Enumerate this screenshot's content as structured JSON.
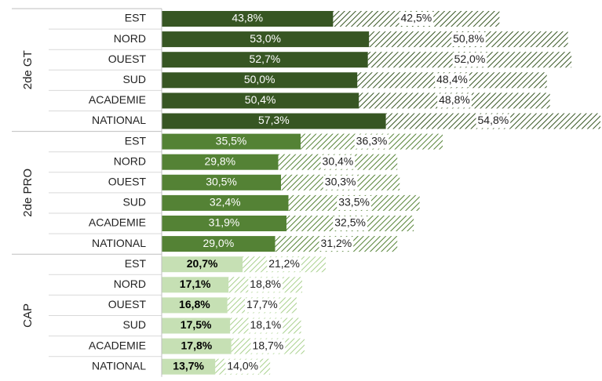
{
  "chart_data": {
    "type": "bar",
    "orientation": "horizontal",
    "stacked": true,
    "groups": [
      {
        "label": "2de GT",
        "categories": [
          "EST",
          "NORD",
          "OUEST",
          "SUD",
          "ACADEMIE",
          "NATIONAL"
        ],
        "series": [
          {
            "color": "#375623",
            "values": [
              43.8,
              53.0,
              52.7,
              50.0,
              50.4,
              57.3
            ],
            "value_labels": [
              "43,8%",
              "53,0%",
              "52,7%",
              "50,0%",
              "50,4%",
              "57,3%"
            ]
          },
          {
            "color": "#375623",
            "pattern": "hatch",
            "values": [
              42.5,
              50.8,
              52.0,
              48.4,
              48.8,
              54.8
            ],
            "value_labels": [
              "42,5%",
              "50,8%",
              "52,0%",
              "48,4%",
              "48,8%",
              "54,8%"
            ]
          }
        ]
      },
      {
        "label": "2de PRO",
        "categories": [
          "EST",
          "NORD",
          "OUEST",
          "SUD",
          "ACADEMIE",
          "NATIONAL"
        ],
        "series": [
          {
            "color": "#548235",
            "values": [
              35.5,
              29.8,
              30.5,
              32.4,
              31.9,
              29.0
            ],
            "value_labels": [
              "35,5%",
              "29,8%",
              "30,5%",
              "32,4%",
              "31,9%",
              "29,0%"
            ]
          },
          {
            "color": "#548235",
            "pattern": "hatch",
            "values": [
              36.3,
              30.4,
              30.3,
              33.5,
              32.5,
              31.2
            ],
            "value_labels": [
              "36,3%",
              "30,4%",
              "30,3%",
              "33,5%",
              "32,5%",
              "31,2%"
            ]
          }
        ]
      },
      {
        "label": "CAP",
        "categories": [
          "EST",
          "NORD",
          "OUEST",
          "SUD",
          "ACADEMIE",
          "NATIONAL"
        ],
        "series": [
          {
            "color": "#c6e0b4",
            "values": [
              20.7,
              17.1,
              16.8,
              17.5,
              17.8,
              13.7
            ],
            "value_labels": [
              "20,7%",
              "17,1%",
              "16,8%",
              "17,5%",
              "17,8%",
              "13,7%"
            ]
          },
          {
            "color": "#a9d18e",
            "pattern": "hatch",
            "values": [
              21.2,
              18.8,
              17.7,
              18.1,
              18.7,
              14.0
            ],
            "value_labels": [
              "21,2%",
              "18,8%",
              "17,7%",
              "18,1%",
              "18,7%",
              "14,0%"
            ]
          }
        ]
      }
    ]
  }
}
